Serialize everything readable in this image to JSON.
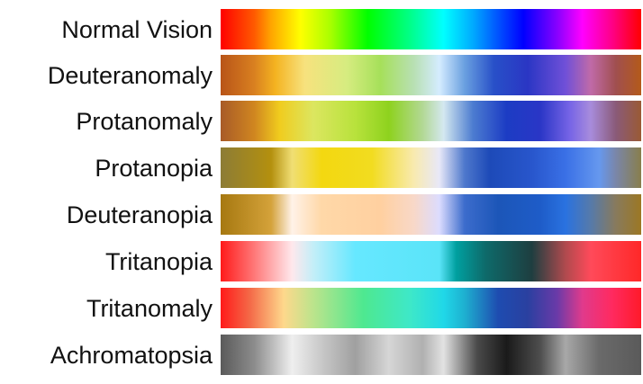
{
  "rows": [
    {
      "label": "Normal Vision",
      "gradient": [
        [
          "#ff0000",
          0
        ],
        [
          "#ff5a00",
          8
        ],
        [
          "#ffa500",
          12
        ],
        [
          "#ffff00",
          19
        ],
        [
          "#aaff00",
          26
        ],
        [
          "#00ff00",
          35
        ],
        [
          "#00ff88",
          45
        ],
        [
          "#00ffff",
          53
        ],
        [
          "#00aaff",
          60
        ],
        [
          "#0044ff",
          67
        ],
        [
          "#0000ff",
          72
        ],
        [
          "#8800ff",
          80
        ],
        [
          "#ff00ff",
          86
        ],
        [
          "#ff0088",
          93
        ],
        [
          "#ff0000",
          100
        ]
      ]
    },
    {
      "label": "Deuteranomaly",
      "gradient": [
        [
          "#b85418",
          0
        ],
        [
          "#d98020",
          8
        ],
        [
          "#f4b320",
          13
        ],
        [
          "#f7e27e",
          20
        ],
        [
          "#d6ec80",
          30
        ],
        [
          "#a6e05a",
          38
        ],
        [
          "#b8e0b4",
          46
        ],
        [
          "#d4ecff",
          52
        ],
        [
          "#6aa0e0",
          58
        ],
        [
          "#2850c8",
          65
        ],
        [
          "#2a36c4",
          73
        ],
        [
          "#7050d8",
          82
        ],
        [
          "#c06aa8",
          88
        ],
        [
          "#a04f4f",
          94
        ],
        [
          "#b45a1a",
          100
        ]
      ]
    },
    {
      "label": "Protanomaly",
      "gradient": [
        [
          "#a85a28",
          0
        ],
        [
          "#d08620",
          8
        ],
        [
          "#f0cc1e",
          14
        ],
        [
          "#dce660",
          22
        ],
        [
          "#b8e23c",
          32
        ],
        [
          "#8ed21e",
          40
        ],
        [
          "#b2d894",
          48
        ],
        [
          "#d4e8f0",
          53
        ],
        [
          "#4c7cd0",
          60
        ],
        [
          "#1c3cc4",
          68
        ],
        [
          "#2a36c6",
          76
        ],
        [
          "#7664e6",
          83
        ],
        [
          "#a88cdc",
          88
        ],
        [
          "#8a5a78",
          94
        ],
        [
          "#9a5a34",
          100
        ]
      ]
    },
    {
      "label": "Protanopia",
      "gradient": [
        [
          "#8c7c36",
          0
        ],
        [
          "#b4900e",
          12
        ],
        [
          "#f0de74",
          17
        ],
        [
          "#f3d810",
          24
        ],
        [
          "#f2dc20",
          36
        ],
        [
          "#f8eab0",
          46
        ],
        [
          "#e8e8f8",
          52
        ],
        [
          "#4e78cc",
          58
        ],
        [
          "#1d4ab8",
          64
        ],
        [
          "#2856cc",
          74
        ],
        [
          "#3a70e6",
          82
        ],
        [
          "#6698ee",
          90
        ],
        [
          "#7a86a8",
          94
        ],
        [
          "#887e4c",
          100
        ]
      ]
    },
    {
      "label": "Deuteranopia",
      "gradient": [
        [
          "#a67810",
          0
        ],
        [
          "#d4a23a",
          12
        ],
        [
          "#fff2e8",
          17
        ],
        [
          "#ffd8a8",
          24
        ],
        [
          "#ffd0a0",
          38
        ],
        [
          "#f8d8c8",
          46
        ],
        [
          "#dcdcff",
          52
        ],
        [
          "#3c6ccc",
          58
        ],
        [
          "#1c56b8",
          66
        ],
        [
          "#1e5cc8",
          76
        ],
        [
          "#2a72e0",
          82
        ],
        [
          "#567aaa",
          88
        ],
        [
          "#887a5c",
          94
        ],
        [
          "#9c7824",
          100
        ]
      ]
    },
    {
      "label": "Tritanopia",
      "gradient": [
        [
          "#ff1a1a",
          0
        ],
        [
          "#ff7878",
          8
        ],
        [
          "#ffe8ec",
          17
        ],
        [
          "#c4eef8",
          22
        ],
        [
          "#66e8ff",
          32
        ],
        [
          "#5ae4f8",
          52
        ],
        [
          "#00a0a0",
          56
        ],
        [
          "#0e6a6a",
          63
        ],
        [
          "#1e3e40",
          74
        ],
        [
          "#b04a4e",
          82
        ],
        [
          "#ff4a5a",
          88
        ],
        [
          "#ff2828",
          100
        ]
      ]
    },
    {
      "label": "Tritanomaly",
      "gradient": [
        [
          "#ff1a1a",
          0
        ],
        [
          "#f46a48",
          7
        ],
        [
          "#fed88c",
          15
        ],
        [
          "#bce48c",
          22
        ],
        [
          "#4ee890",
          34
        ],
        [
          "#3ee8c8",
          45
        ],
        [
          "#20d8e8",
          53
        ],
        [
          "#1eb0d0",
          58
        ],
        [
          "#1e4cb0",
          66
        ],
        [
          "#2a40a0",
          73
        ],
        [
          "#6a3aa8",
          80
        ],
        [
          "#e03a8c",
          86
        ],
        [
          "#ff2a60",
          93
        ],
        [
          "#ff1a2a",
          100
        ]
      ]
    },
    {
      "label": "Achromatopsia",
      "gradient": [
        [
          "#5a5a5a",
          0
        ],
        [
          "#8c8c8c",
          8
        ],
        [
          "#efefef",
          17
        ],
        [
          "#c8c8c8",
          24
        ],
        [
          "#a0a0a0",
          32
        ],
        [
          "#d6d6d6",
          40
        ],
        [
          "#b0b0b0",
          48
        ],
        [
          "#e2e2e2",
          53
        ],
        [
          "#4a4a4a",
          61
        ],
        [
          "#1a1a1a",
          68
        ],
        [
          "#4e4e4e",
          76
        ],
        [
          "#a8a8a8",
          82
        ],
        [
          "#6a6a6a",
          90
        ],
        [
          "#5a5a5a",
          100
        ]
      ]
    }
  ]
}
